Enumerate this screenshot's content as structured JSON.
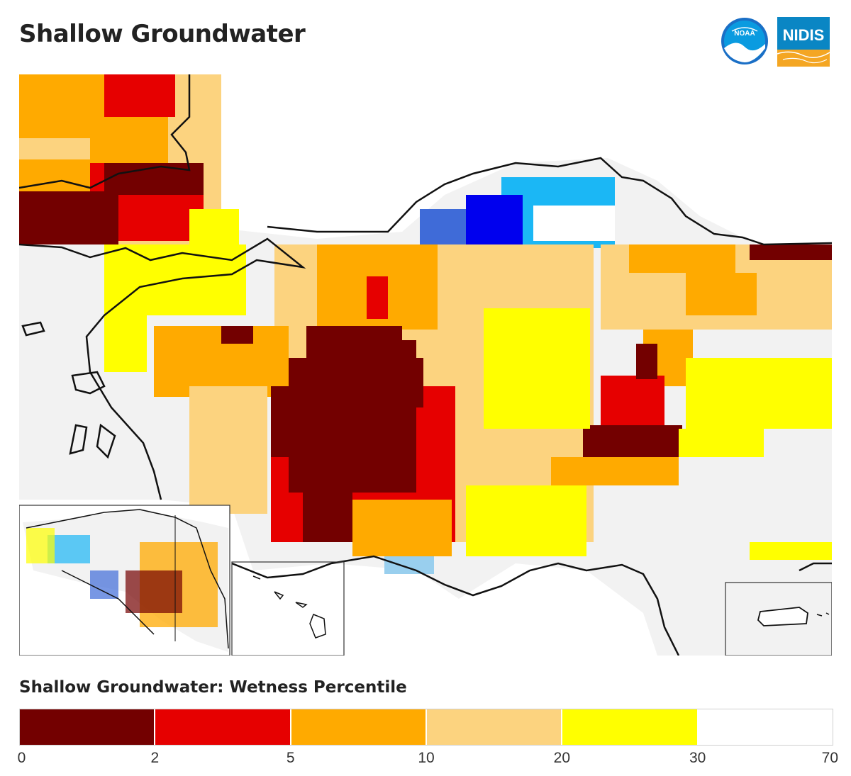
{
  "title": "Shallow Groundwater",
  "logos": {
    "noaa_text": "NOAA",
    "nidis_text": "NIDIS"
  },
  "colors": {
    "background_land": "#f2f2f2",
    "boundary": "#111111",
    "blue_light": "#99cfee",
    "blue_mid": "#1bb7f5",
    "blue_deep": "#0000ee",
    "blue_royal": "#3f6bd8"
  },
  "legend": {
    "title": "Shallow Groundwater: Wetness Percentile",
    "classes": [
      {
        "range": "0-2",
        "color": "#730000"
      },
      {
        "range": "2-5",
        "color": "#e60000"
      },
      {
        "range": "5-10",
        "color": "#ffaa00"
      },
      {
        "range": "10-20",
        "color": "#fcd37f"
      },
      {
        "range": "20-30",
        "color": "#ffff00"
      },
      {
        "range": "30-70",
        "color": "#ffffff"
      }
    ],
    "ticks": [
      "0",
      "2",
      "5",
      "10",
      "20",
      "30",
      "70"
    ]
  }
}
